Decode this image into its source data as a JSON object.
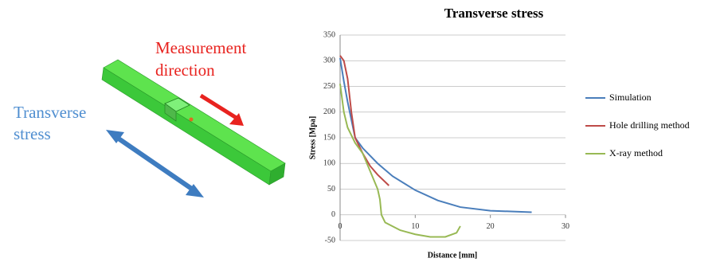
{
  "illustration": {
    "measurement_label": [
      "Measurement",
      "direction"
    ],
    "stress_label": [
      "Transverse",
      "stress"
    ]
  },
  "chart_data": {
    "type": "line",
    "title": "Transverse stress",
    "x_label": "Distance [mm]",
    "y_label": "Stress [Mpa]",
    "xlim": [
      0,
      30
    ],
    "xticks": [
      0,
      10,
      20,
      30
    ],
    "ylim": [
      -50,
      350
    ],
    "yticks": [
      -50,
      0,
      50,
      100,
      150,
      200,
      250,
      300,
      350
    ],
    "grid": true,
    "legend": "right",
    "series": [
      {
        "name": "Simulation",
        "color": "#4a7ebb",
        "x": [
          0,
          0.5,
          1,
          2,
          3,
          5,
          7,
          10,
          13,
          16,
          20,
          25.5
        ],
        "values": [
          305,
          260,
          220,
          150,
          130,
          100,
          75,
          48,
          28,
          15,
          8,
          5
        ]
      },
      {
        "name": "Hole drilling method",
        "color": "#be4b48",
        "x": [
          0,
          0.5,
          1,
          1.5,
          2,
          3,
          4,
          5,
          6.5
        ],
        "values": [
          310,
          300,
          265,
          200,
          150,
          120,
          95,
          78,
          57
        ]
      },
      {
        "name": "X-ray method",
        "color": "#98b954",
        "x": [
          0,
          0.5,
          1,
          2,
          3,
          4,
          5,
          5.3,
          5.5,
          6,
          8,
          10,
          12,
          14,
          15.5,
          16
        ],
        "values": [
          255,
          200,
          170,
          140,
          120,
          85,
          50,
          30,
          0,
          -15,
          -30,
          -38,
          -43,
          -43,
          -35,
          -22
        ]
      }
    ]
  }
}
